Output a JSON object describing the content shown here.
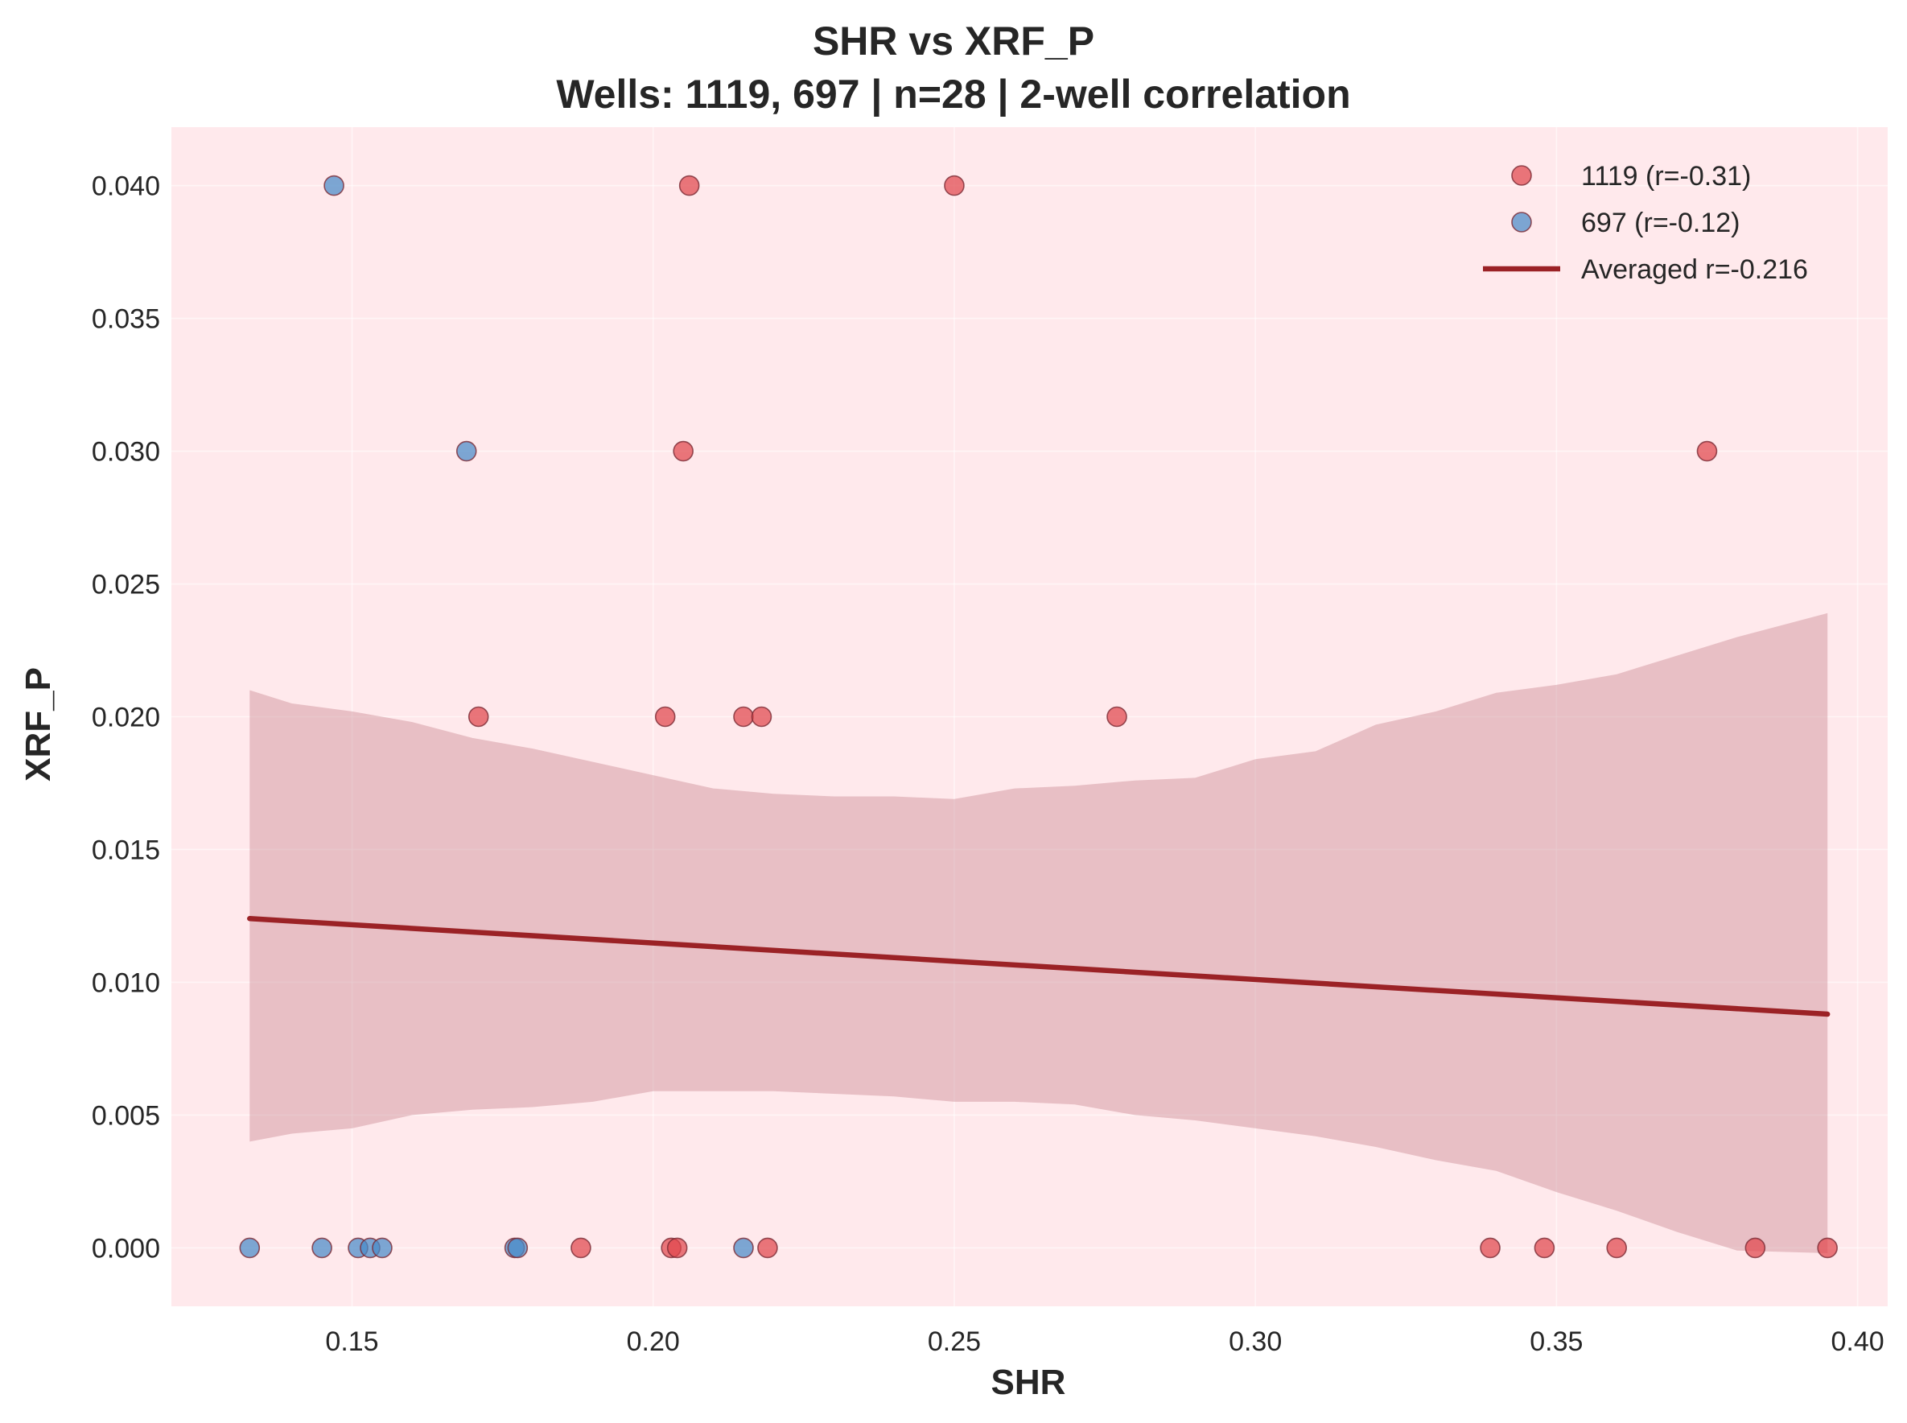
{
  "chart_data": {
    "type": "scatter",
    "title": "SHR vs XRF_P",
    "subtitle": "Wells: 1119, 697 | n=28 | 2-well correlation",
    "xlabel": "SHR",
    "ylabel": "XRF_P",
    "xlim": [
      0.12,
      0.405
    ],
    "ylim": [
      -0.0022,
      0.0422
    ],
    "x_ticks": [
      {
        "value": 0.15,
        "label": "0.15"
      },
      {
        "value": 0.2,
        "label": "0.20"
      },
      {
        "value": 0.25,
        "label": "0.25"
      },
      {
        "value": 0.3,
        "label": "0.30"
      },
      {
        "value": 0.35,
        "label": "0.35"
      },
      {
        "value": 0.4,
        "label": "0.40"
      }
    ],
    "y_ticks": [
      {
        "value": 0.0,
        "label": "0.000"
      },
      {
        "value": 0.005,
        "label": "0.005"
      },
      {
        "value": 0.01,
        "label": "0.010"
      },
      {
        "value": 0.015,
        "label": "0.015"
      },
      {
        "value": 0.02,
        "label": "0.020"
      },
      {
        "value": 0.025,
        "label": "0.025"
      },
      {
        "value": 0.03,
        "label": "0.030"
      },
      {
        "value": 0.035,
        "label": "0.035"
      },
      {
        "value": 0.04,
        "label": "0.040"
      }
    ],
    "grid": true,
    "legend_position": "top-right",
    "background_color": "#ffe9ec",
    "series": [
      {
        "name": "1119 (r=-0.31)",
        "color": "#e0474c",
        "points": [
          {
            "x": 0.206,
            "y": 0.04
          },
          {
            "x": 0.25,
            "y": 0.04
          },
          {
            "x": 0.205,
            "y": 0.03
          },
          {
            "x": 0.375,
            "y": 0.03
          },
          {
            "x": 0.171,
            "y": 0.02
          },
          {
            "x": 0.202,
            "y": 0.02
          },
          {
            "x": 0.215,
            "y": 0.02
          },
          {
            "x": 0.218,
            "y": 0.02
          },
          {
            "x": 0.277,
            "y": 0.02
          },
          {
            "x": 0.188,
            "y": 0.0
          },
          {
            "x": 0.203,
            "y": 0.0
          },
          {
            "x": 0.204,
            "y": 0.0
          },
          {
            "x": 0.219,
            "y": 0.0
          },
          {
            "x": 0.339,
            "y": 0.0
          },
          {
            "x": 0.348,
            "y": 0.0
          },
          {
            "x": 0.36,
            "y": 0.0
          },
          {
            "x": 0.383,
            "y": 0.0
          },
          {
            "x": 0.395,
            "y": 0.0
          }
        ]
      },
      {
        "name": "697 (r=-0.12)",
        "color": "#4a8ac7",
        "points": [
          {
            "x": 0.147,
            "y": 0.04
          },
          {
            "x": 0.169,
            "y": 0.03
          },
          {
            "x": 0.133,
            "y": 0.0
          },
          {
            "x": 0.145,
            "y": 0.0
          },
          {
            "x": 0.151,
            "y": 0.0
          },
          {
            "x": 0.153,
            "y": 0.0
          },
          {
            "x": 0.155,
            "y": 0.0
          },
          {
            "x": 0.177,
            "y": 0.0
          },
          {
            "x": 0.1775,
            "y": 0.0
          },
          {
            "x": 0.215,
            "y": 0.0
          }
        ]
      }
    ],
    "fit_line": {
      "name": "Averaged r=-0.216",
      "color": "#9b2226",
      "x": [
        0.133,
        0.395
      ],
      "y": [
        0.0124,
        0.0088
      ]
    },
    "confidence_band": {
      "color": "#c9868e",
      "x": [
        0.133,
        0.14,
        0.15,
        0.16,
        0.17,
        0.18,
        0.19,
        0.2,
        0.21,
        0.22,
        0.23,
        0.24,
        0.25,
        0.26,
        0.27,
        0.28,
        0.29,
        0.3,
        0.31,
        0.32,
        0.33,
        0.34,
        0.35,
        0.36,
        0.37,
        0.38,
        0.395
      ],
      "upper": [
        0.021,
        0.0205,
        0.0202,
        0.0198,
        0.0192,
        0.0188,
        0.0183,
        0.0178,
        0.0173,
        0.0171,
        0.017,
        0.017,
        0.0169,
        0.0173,
        0.0174,
        0.0176,
        0.0177,
        0.0184,
        0.0187,
        0.0197,
        0.0202,
        0.0209,
        0.0212,
        0.0216,
        0.0223,
        0.023,
        0.0239
      ],
      "lower": [
        0.004,
        0.0043,
        0.0045,
        0.005,
        0.0052,
        0.0053,
        0.0055,
        0.0059,
        0.0059,
        0.0059,
        0.0058,
        0.0057,
        0.0055,
        0.0055,
        0.0054,
        0.005,
        0.0048,
        0.0045,
        0.0042,
        0.0038,
        0.0033,
        0.0029,
        0.0021,
        0.0014,
        0.0006,
        -0.0001,
        -0.0002
      ]
    }
  }
}
